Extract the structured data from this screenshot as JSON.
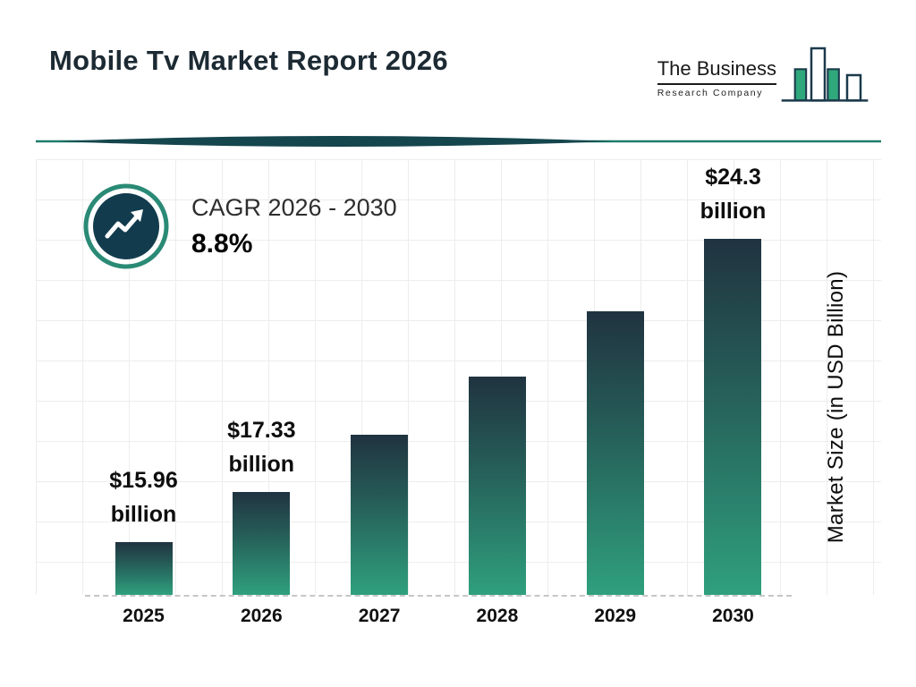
{
  "header": {
    "title": "Mobile Tv Market Report 2026",
    "logo": {
      "line1": "The Business",
      "line2": "Research Company"
    }
  },
  "cagr": {
    "label": "CAGR 2026 - 2030",
    "value": "8.8%"
  },
  "axis": {
    "y_label": "Market Size (in USD Billion)"
  },
  "chart_data": {
    "type": "bar",
    "title": "Mobile Tv Market Report 2026",
    "categories": [
      "2025",
      "2026",
      "2027",
      "2028",
      "2029",
      "2030"
    ],
    "values": [
      15.96,
      17.33,
      18.9,
      20.5,
      22.3,
      24.3
    ],
    "unit": "USD Billion",
    "xlabel": "",
    "ylabel": "Market Size (in USD Billion)",
    "ylim": [
      14.5,
      26.5
    ],
    "grid": true,
    "bar_labels": [
      {
        "line1": "$15.96",
        "line2": "billion"
      },
      {
        "line1": "$17.33",
        "line2": "billion"
      },
      null,
      null,
      null,
      {
        "line1": "$24.3",
        "line2": "billion"
      }
    ],
    "annotations": [
      {
        "text": "CAGR 2026 - 2030",
        "value": "8.8%"
      }
    ]
  },
  "colors": {
    "bar_top": "#203340",
    "bar_bottom": "#2fa07d",
    "accent_teal": "#2a8a75",
    "navy": "#123c4d",
    "divider": "#1e7b6a",
    "logo_green": "#2fa87c",
    "logo_navy": "#1b3a4b"
  }
}
